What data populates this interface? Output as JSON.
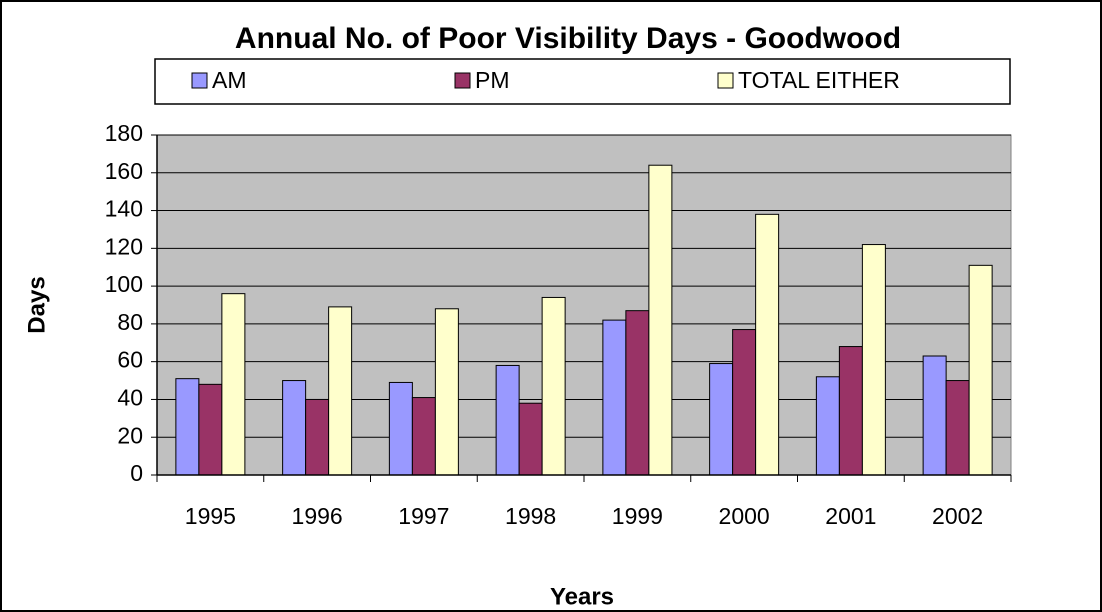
{
  "chart_data": {
    "type": "bar",
    "title": "Annual No. of Poor Visibility Days - Goodwood",
    "x_label": "Years",
    "y_label": "Days",
    "categories": [
      "1995",
      "1996",
      "1997",
      "1998",
      "1999",
      "2000",
      "2001",
      "2002"
    ],
    "series": [
      {
        "name": "AM",
        "color": "#9999ff",
        "values": [
          51,
          50,
          49,
          58,
          82,
          59,
          52,
          63
        ]
      },
      {
        "name": "PM",
        "color": "#993366",
        "values": [
          48,
          40,
          41,
          38,
          87,
          77,
          68,
          50
        ]
      },
      {
        "name": "TOTAL EITHER",
        "color": "#ffffcc",
        "values": [
          96,
          89,
          88,
          94,
          164,
          138,
          122,
          111
        ]
      }
    ],
    "ylim": [
      0,
      180
    ],
    "yticks": [
      0,
      20,
      40,
      60,
      80,
      100,
      120,
      140,
      160,
      180
    ],
    "grid": true,
    "plot_background": "#c0c0c0",
    "legend_position": "top"
  }
}
